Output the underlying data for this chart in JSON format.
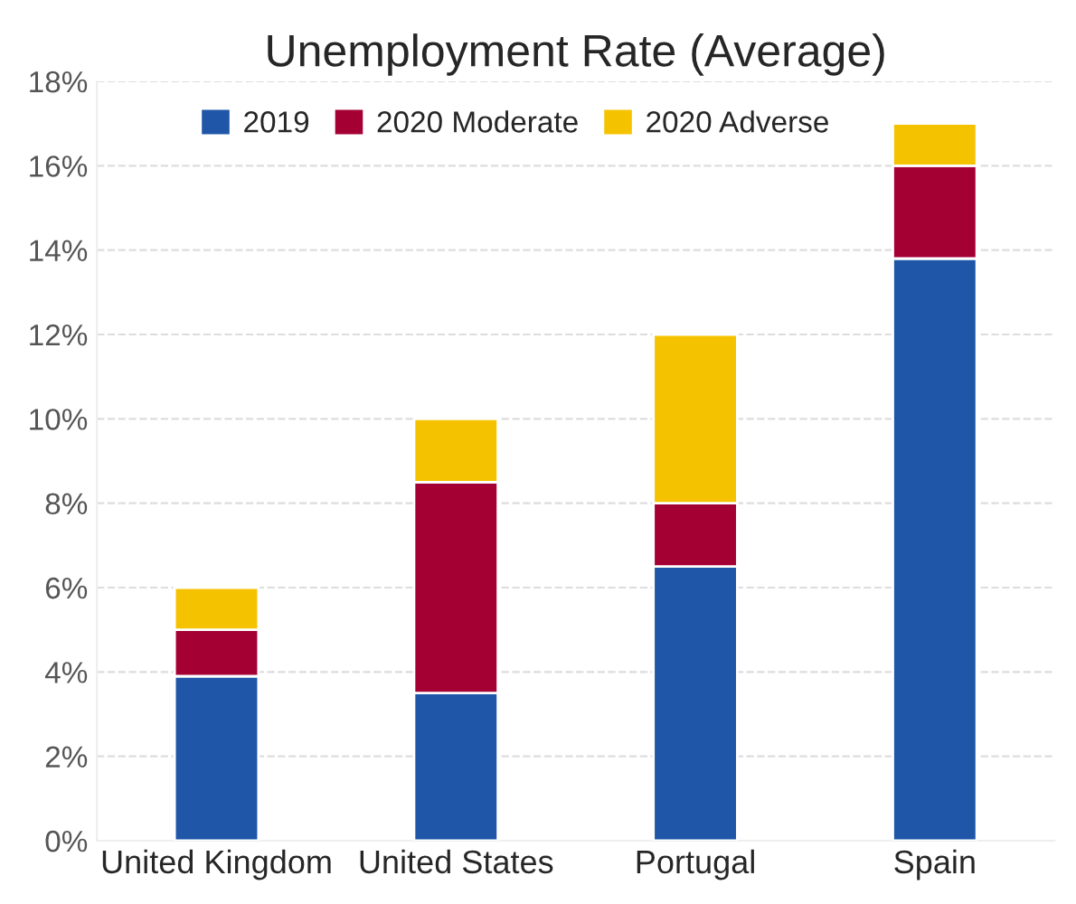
{
  "chart_data": {
    "type": "bar",
    "title": "Unemployment Rate (Average)",
    "stacked": true,
    "categories": [
      "United Kingdom",
      "United States",
      "Portugal",
      "Spain"
    ],
    "series": [
      {
        "name": "2019",
        "color": "#1f56a8",
        "values": [
          3.9,
          3.5,
          6.5,
          13.8
        ]
      },
      {
        "name": "2020 Moderate",
        "color": "#a50034",
        "values": [
          1.1,
          5.0,
          1.5,
          2.2
        ]
      },
      {
        "name": "2020 Adverse",
        "color": "#f5c200",
        "values": [
          1.0,
          1.5,
          4.0,
          1.0
        ]
      }
    ],
    "ylim": [
      0,
      18
    ],
    "yticks": [
      {
        "value": 0,
        "label": "0%"
      },
      {
        "value": 2,
        "label": "2%"
      },
      {
        "value": 4,
        "label": "4%"
      },
      {
        "value": 6,
        "label": "6%"
      },
      {
        "value": 8,
        "label": "8%"
      },
      {
        "value": 10,
        "label": "10%"
      },
      {
        "value": 12,
        "label": "12%"
      },
      {
        "value": 14,
        "label": "14%"
      },
      {
        "value": 16,
        "label": "16%"
      },
      {
        "value": 18,
        "label": "18%"
      }
    ],
    "grid": "y",
    "legend": "top left"
  }
}
